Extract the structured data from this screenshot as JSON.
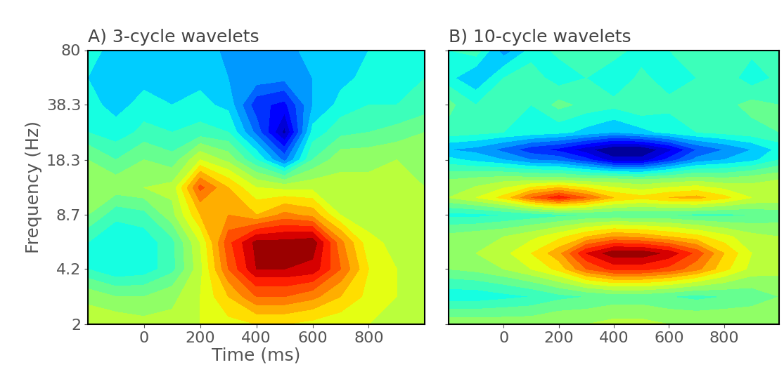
{
  "chart_data": [
    {
      "type": "heatmap",
      "title": "A) 3-cycle wavelets",
      "x_label": "Time (ms)",
      "y_label": "Frequency (Hz)",
      "log": "y",
      "tick_labels": true,
      "xlim": [
        -200,
        1000
      ],
      "xticks": [
        0,
        200,
        400,
        600,
        800
      ],
      "ylim": [
        2,
        80
      ],
      "yticks": [
        2,
        4.2,
        8.7,
        18.3,
        38.3,
        80
      ],
      "clim": [
        -3,
        3
      ],
      "x": [
        -200,
        -100,
        0,
        100,
        200,
        300,
        400,
        500,
        600,
        700,
        800,
        900,
        1000
      ],
      "y": [
        2,
        2.9,
        4.2,
        6,
        8.7,
        12.6,
        18.3,
        26.5,
        38.3,
        55,
        80
      ],
      "values": [
        [
          0.5,
          0.5,
          0.4,
          0.4,
          0.6,
          0.8,
          0.9,
          0.9,
          0.8,
          0.7,
          0.6,
          0.5,
          0.5
        ],
        [
          0.2,
          0.0,
          0.0,
          0.2,
          0.6,
          1.2,
          1.8,
          1.8,
          1.6,
          1.2,
          0.8,
          0.6,
          0.5
        ],
        [
          -0.6,
          -0.9,
          -0.8,
          -0.4,
          0.5,
          1.8,
          2.7,
          2.7,
          2.6,
          1.8,
          0.9,
          0.6,
          0.5
        ],
        [
          -0.6,
          -0.9,
          -0.8,
          -0.4,
          0.6,
          2.0,
          2.8,
          2.8,
          2.9,
          1.6,
          0.7,
          0.5,
          0.4
        ],
        [
          0.0,
          -0.5,
          -0.4,
          0.2,
          1.2,
          1.5,
          1.2,
          1.6,
          1.4,
          0.6,
          0.4,
          0.4,
          0.3
        ],
        [
          0.2,
          0.2,
          0.3,
          0.4,
          1.9,
          1.2,
          0.6,
          0.5,
          0.5,
          0.4,
          0.4,
          0.4,
          0.3
        ],
        [
          0.0,
          -0.3,
          0.0,
          -0.2,
          0.6,
          0.2,
          -0.6,
          -1.6,
          -0.3,
          0.2,
          0.2,
          0.3,
          0.2
        ],
        [
          -0.6,
          -0.8,
          -0.5,
          -0.6,
          -0.5,
          -0.6,
          -1.6,
          -2.8,
          -0.8,
          -0.4,
          -0.3,
          -0.2,
          0.0
        ],
        [
          -0.8,
          -1.0,
          -0.8,
          -0.9,
          -0.8,
          -1.0,
          -2.0,
          -2.2,
          -1.2,
          -0.8,
          -0.6,
          -0.6,
          -0.5
        ],
        [
          -0.9,
          -1.1,
          -1.0,
          -1.0,
          -1.0,
          -1.2,
          -1.3,
          -1.4,
          -1.2,
          -1.0,
          -0.8,
          -0.7,
          -0.6
        ],
        [
          -0.8,
          -1.0,
          -1.1,
          -1.2,
          -1.0,
          -1.3,
          -1.2,
          -1.3,
          -1.1,
          -1.0,
          -0.9,
          -0.8,
          -0.7
        ]
      ]
    },
    {
      "type": "heatmap",
      "title": "B) 10-cycle wavelets",
      "log": "y",
      "tick_labels": "x",
      "xlim": [
        -200,
        1000
      ],
      "xticks": [
        0,
        200,
        400,
        600,
        800
      ],
      "ylim": [
        2,
        80
      ],
      "yticks": [
        2,
        4.2,
        8.7,
        18.3,
        38.3,
        80
      ],
      "clim": [
        -3,
        3
      ],
      "x": [
        -200,
        -100,
        0,
        100,
        200,
        300,
        400,
        500,
        600,
        700,
        800,
        900,
        1000
      ],
      "y": [
        2,
        2.9,
        4.2,
        5.2,
        6.5,
        8.7,
        11,
        14,
        18.3,
        21,
        26.5,
        38.3,
        55,
        80
      ],
      "values": [
        [
          0.2,
          0.2,
          0.2,
          0.2,
          0.3,
          0.3,
          0.4,
          0.4,
          0.3,
          0.3,
          0.3,
          0.3,
          0.3
        ],
        [
          -0.8,
          -0.8,
          -0.7,
          -0.6,
          -0.4,
          -0.3,
          -0.2,
          -0.2,
          -0.3,
          -0.4,
          -0.3,
          -0.2,
          0.0
        ],
        [
          0.0,
          0.1,
          0.3,
          0.6,
          1.0,
          1.8,
          2.2,
          2.2,
          2.0,
          1.6,
          1.0,
          0.5,
          0.4
        ],
        [
          0.2,
          0.3,
          0.5,
          0.9,
          1.4,
          2.4,
          2.9,
          2.9,
          2.6,
          2.0,
          1.2,
          0.6,
          0.4
        ],
        [
          0.1,
          0.2,
          0.3,
          0.5,
          0.8,
          1.2,
          1.5,
          1.4,
          1.2,
          1.0,
          0.7,
          0.4,
          0.3
        ],
        [
          -0.7,
          -0.7,
          -0.6,
          -0.5,
          -0.4,
          -0.3,
          -0.3,
          -0.3,
          -0.3,
          -0.4,
          -0.4,
          -0.3,
          -0.2
        ],
        [
          0.3,
          0.6,
          1.0,
          1.8,
          2.3,
          1.8,
          1.2,
          1.0,
          1.2,
          1.3,
          1.0,
          0.6,
          0.5
        ],
        [
          0.0,
          0.1,
          0.2,
          0.2,
          0.2,
          0.1,
          0.1,
          0.0,
          0.1,
          0.2,
          0.1,
          0.2,
          0.3
        ],
        [
          -0.8,
          -1.0,
          -1.2,
          -1.5,
          -1.6,
          -2.0,
          -2.6,
          -2.6,
          -2.0,
          -1.4,
          -1.2,
          -1.0,
          -0.6
        ],
        [
          -1.2,
          -1.3,
          -1.6,
          -2.0,
          -2.2,
          -2.6,
          -3.0,
          -3.0,
          -2.5,
          -1.8,
          -1.5,
          -1.2,
          -0.8
        ],
        [
          -0.4,
          -0.5,
          -0.6,
          -0.7,
          -0.8,
          -1.0,
          -1.2,
          -1.0,
          -0.8,
          -0.6,
          -0.5,
          -0.4,
          -0.3
        ],
        [
          -0.2,
          -0.6,
          -0.3,
          -0.6,
          -0.2,
          -0.4,
          -0.5,
          -0.3,
          -0.5,
          -0.3,
          -0.4,
          -0.2,
          -0.3
        ],
        [
          -0.8,
          -1.2,
          -0.6,
          -0.4,
          -0.8,
          -0.6,
          -0.9,
          -0.5,
          -0.8,
          -0.6,
          -0.4,
          -0.8,
          -0.5
        ],
        [
          -0.6,
          -0.4,
          -1.4,
          -0.8,
          -0.5,
          -0.6,
          -0.4,
          -0.8,
          -0.6,
          -0.4,
          -0.6,
          -0.5,
          -0.4
        ]
      ]
    }
  ]
}
